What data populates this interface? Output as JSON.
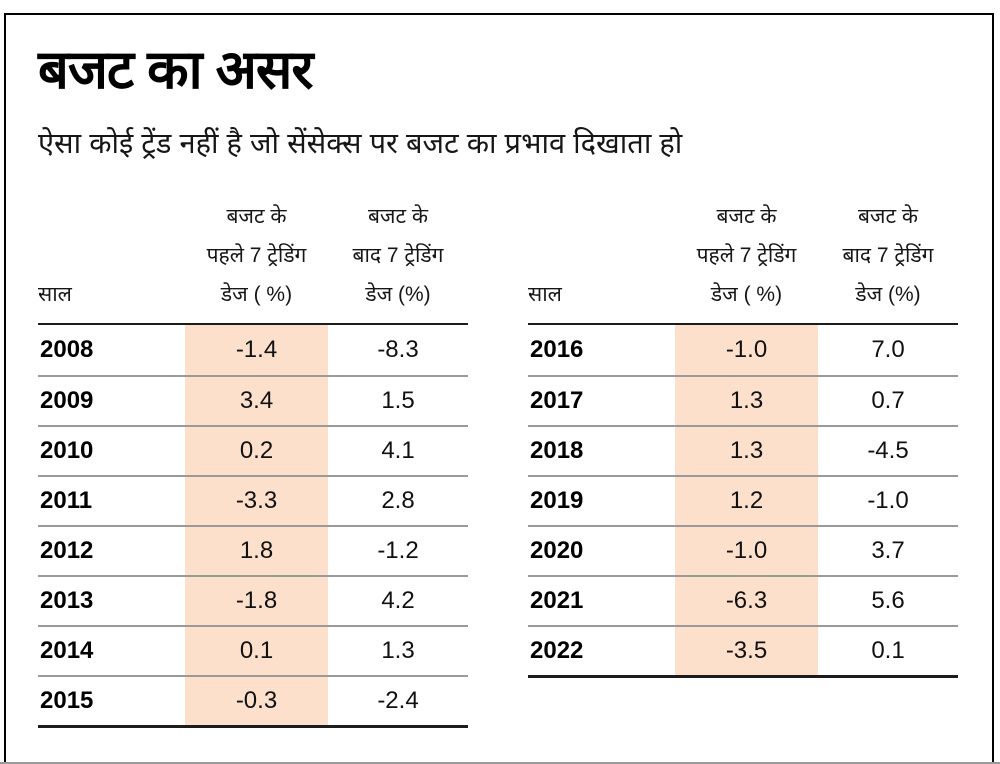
{
  "page": {
    "title": "बजट का असर",
    "subtitle": "ऐसा कोई ट्रेंड नहीं है जो सेंसेक्स पर बजट का प्रभाव दिखाता हो"
  },
  "columns": {
    "year": "साल",
    "before": "बजट के\nपहले 7 ट्रेडिंग\nडेज ( %)",
    "after": "बजट के\nबाद 7 ट्रेडिंग\nडेज (%)"
  },
  "tables": [
    {
      "rows": [
        {
          "year": "2008",
          "before": "-1.4",
          "after": "-8.3"
        },
        {
          "year": "2009",
          "before": "3.4",
          "after": "1.5"
        },
        {
          "year": "2010",
          "before": "0.2",
          "after": "4.1"
        },
        {
          "year": "2011",
          "before": "-3.3",
          "after": "2.8"
        },
        {
          "year": "2012",
          "before": "1.8",
          "after": "-1.2"
        },
        {
          "year": "2013",
          "before": "-1.8",
          "after": "4.2"
        },
        {
          "year": "2014",
          "before": "0.1",
          "after": "1.3"
        },
        {
          "year": "2015",
          "before": "-0.3",
          "after": "-2.4"
        }
      ]
    },
    {
      "rows": [
        {
          "year": "2016",
          "before": "-1.0",
          "after": "7.0"
        },
        {
          "year": "2017",
          "before": "1.3",
          "after": "0.7"
        },
        {
          "year": "2018",
          "before": "1.3",
          "after": "-4.5"
        },
        {
          "year": "2019",
          "before": "1.2",
          "after": "-1.0"
        },
        {
          "year": "2020",
          "before": "-1.0",
          "after": "3.7"
        },
        {
          "year": "2021",
          "before": "-6.3",
          "after": "5.6"
        },
        {
          "year": "2022",
          "before": "-3.5",
          "after": "0.1"
        }
      ]
    }
  ],
  "colors": {
    "highlight": "#fce0cb",
    "divider": "#9a9a9a",
    "rule": "#1c1c1c"
  },
  "chart_data": [
    {
      "type": "table",
      "title": "बजट का असर",
      "subtitle": "ऐसा कोई ट्रेंड नहीं है जो सेंसेक्स पर बजट का प्रभाव दिखाता हो",
      "columns": [
        "साल",
        "बजट के पहले 7 ट्रेडिंग डेज ( %)",
        "बजट के बाद 7 ट्रेडिंग डेज (%)"
      ],
      "rows": [
        [
          2008,
          -1.4,
          -8.3
        ],
        [
          2009,
          3.4,
          1.5
        ],
        [
          2010,
          0.2,
          4.1
        ],
        [
          2011,
          -3.3,
          2.8
        ],
        [
          2012,
          1.8,
          -1.2
        ],
        [
          2013,
          -1.8,
          4.2
        ],
        [
          2014,
          0.1,
          1.3
        ],
        [
          2015,
          -0.3,
          -2.4
        ]
      ],
      "layout_hints": {
        "highlighted_column": "बजट के पहले 7 ट्रेडिंग डेज ( %)",
        "highlight_color": "#fce0cb"
      }
    },
    {
      "type": "table",
      "title": "बजट का असर",
      "subtitle": "ऐसा कोई ट्रेंड नहीं है जो सेंसेक्स पर बजट का प्रभाव दिखाता हो",
      "columns": [
        "साल",
        "बजट के पहले 7 ट्रेडिंग डेज ( %)",
        "बजट के बाद 7 ट्रेडिंग डेज (%)"
      ],
      "rows": [
        [
          2016,
          -1.0,
          7.0
        ],
        [
          2017,
          1.3,
          0.7
        ],
        [
          2018,
          1.3,
          -4.5
        ],
        [
          2019,
          1.2,
          -1.0
        ],
        [
          2020,
          -1.0,
          3.7
        ],
        [
          2021,
          -6.3,
          5.6
        ],
        [
          2022,
          -3.5,
          0.1
        ]
      ],
      "layout_hints": {
        "highlighted_column": "बजट के पहले 7 ट्रेडिंग डेज ( %)",
        "highlight_color": "#fce0cb"
      }
    }
  ]
}
